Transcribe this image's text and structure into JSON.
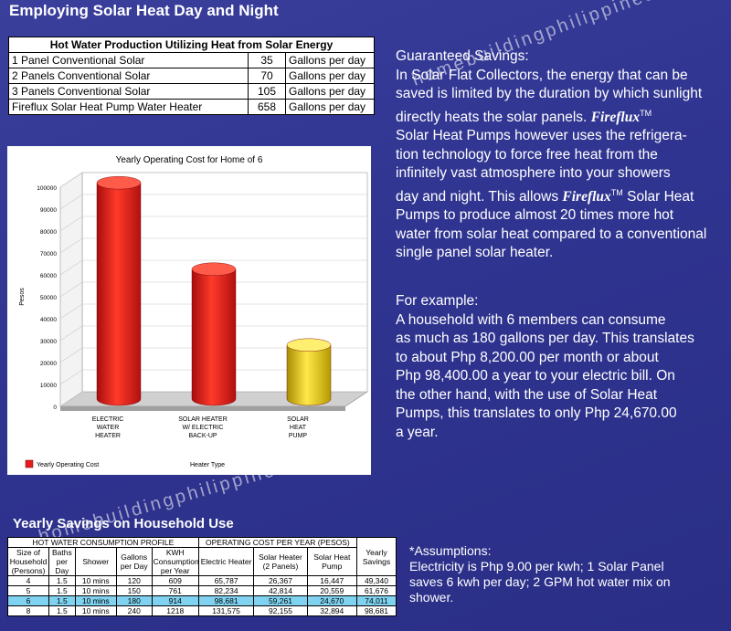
{
  "header": {
    "title": "Employing Solar Heat Day and Night"
  },
  "watermarks": {
    "top": "homebuildingphilippines.com",
    "bottom": "homebuildingphilippines.com"
  },
  "production_table": {
    "title": "Hot Water Production Utilizing Heat from Solar Energy",
    "rows": [
      {
        "label": "1 Panel Conventional Solar",
        "value": "35",
        "unit": "Gallons per day"
      },
      {
        "label": "2 Panels Conventional Solar",
        "value": "70",
        "unit": "Gallons per day"
      },
      {
        "label": "3 Panels Conventional Solar",
        "value": "105",
        "unit": "Gallons per day"
      },
      {
        "label": "Fireflux Solar Heat Pump Water Heater",
        "value": "658",
        "unit": "Gallons per day"
      }
    ]
  },
  "chart_data": {
    "type": "bar",
    "title": "Yearly Operating Cost for Home of 6",
    "categories": [
      "ELECTRIC WATER HEATER",
      "SOLAR HEATER W/ ELECTRIC BACK-UP",
      "SOLAR HEAT PUMP"
    ],
    "category_lines": [
      [
        "ELECTRIC",
        "WATER",
        "HEATER"
      ],
      [
        "SOLAR HEATER",
        "W/ ELECTRIC",
        "BACK-UP"
      ],
      [
        "SOLAR",
        "HEAT",
        "PUMP"
      ]
    ],
    "series": [
      {
        "name": "Yearly Operating Cost",
        "values": [
          98681,
          59261,
          24670
        ]
      }
    ],
    "colors": [
      "#e41c1c",
      "#e41c1c",
      "#f0d000"
    ],
    "ylabel": "Pesos",
    "xlabel": "Heater Type",
    "ylim": [
      0,
      100000
    ],
    "yticks": [
      0,
      10000,
      20000,
      30000,
      40000,
      50000,
      60000,
      70000,
      80000,
      90000,
      100000
    ],
    "grid": true,
    "style": "3d-cylinder",
    "legend_position": "bottom-left"
  },
  "guaranteed": {
    "heading": "Guaranteed Savings:",
    "line1": "In Solar Flat Collectors, the energy that can be",
    "line2": "saved is limited by the duration by which sunlight",
    "line3_pre": "directly heats the solar panels.",
    "brand": "Fireflux",
    "tm": "TM",
    "line4": "Solar Heat Pumps however uses the refrigera-",
    "line5": "tion technology to force free heat from the",
    "line6": "infinitely vast atmosphere into your showers",
    "line7": "day and night. This allows",
    "line7_post": "Solar Heat",
    "line8": "Pumps to produce almost 20 times more hot",
    "line9": "water from solar heat compared to a conventional",
    "line10": "single panel solar heater."
  },
  "example": {
    "heading": "For example:",
    "lines": [
      "A household with 6 members can consume",
      "as much as 180 gallons per day.  This translates",
      "to about Php 8,200.00 per month or about",
      "Php 98,400.00 a year to your electric bill. On",
      "the other hand, with the use of Solar Heat",
      "Pumps, this translates to only Php 24,670.00",
      "a year."
    ]
  },
  "savings": {
    "title": "Yearly Savings on Household Use",
    "group1": "HOT WATER CONSUMPTION PROFILE",
    "group2": "OPERATING COST PER YEAR (PESOS)",
    "col_size": "Size of Household (Persons)",
    "col_baths": "Baths per Day",
    "col_shower": "Shower",
    "col_gallons": "Gallons per Day",
    "col_kwh": "KWH Consumption per Year",
    "col_elec": "Electric Heater",
    "col_solar": "Solar Heater (2 Panels)",
    "col_pump": "Solar Heat Pump",
    "col_yearly": "Yearly Savings",
    "rows": [
      {
        "size": "4",
        "baths": "1.5",
        "shower": "10 mins",
        "gallons": "120",
        "kwh": "609",
        "elec": "65,787",
        "solar": "26,367",
        "pump": "16,447",
        "savings": "49,340"
      },
      {
        "size": "5",
        "baths": "1.5",
        "shower": "10 mins",
        "gallons": "150",
        "kwh": "761",
        "elec": "82,234",
        "solar": "42,814",
        "pump": "20,559",
        "savings": "61,676"
      },
      {
        "size": "6",
        "baths": "1.5",
        "shower": "10 mins",
        "gallons": "180",
        "kwh": "914",
        "elec": "98,681",
        "solar": "59,261",
        "pump": "24,670",
        "savings": "74,011"
      },
      {
        "size": "8",
        "baths": "1.5",
        "shower": "10 mins",
        "gallons": "240",
        "kwh": "1218",
        "elec": "131,575",
        "solar": "92,155",
        "pump": "32,894",
        "savings": "98,681"
      }
    ],
    "highlight_color": "#7fd3f0"
  },
  "assumptions": {
    "heading": "*Assumptions:",
    "lines": [
      "Electricity is Php 9.00 per kwh; 1 Solar Panel",
      "saves 6 kwh per day; 2 GPM hot water mix on",
      "shower."
    ]
  }
}
